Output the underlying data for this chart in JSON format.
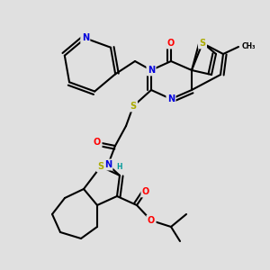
{
  "bg_color": "#e0e0e0",
  "bond_color": "#000000",
  "bond_width": 1.5,
  "dbo": 0.012,
  "atom_colors": {
    "N": "#0000dd",
    "S": "#aaaa00",
    "O": "#ff0000",
    "C": "#000000",
    "H": "#009999"
  },
  "fs": 7.0,
  "fs_small": 5.5
}
